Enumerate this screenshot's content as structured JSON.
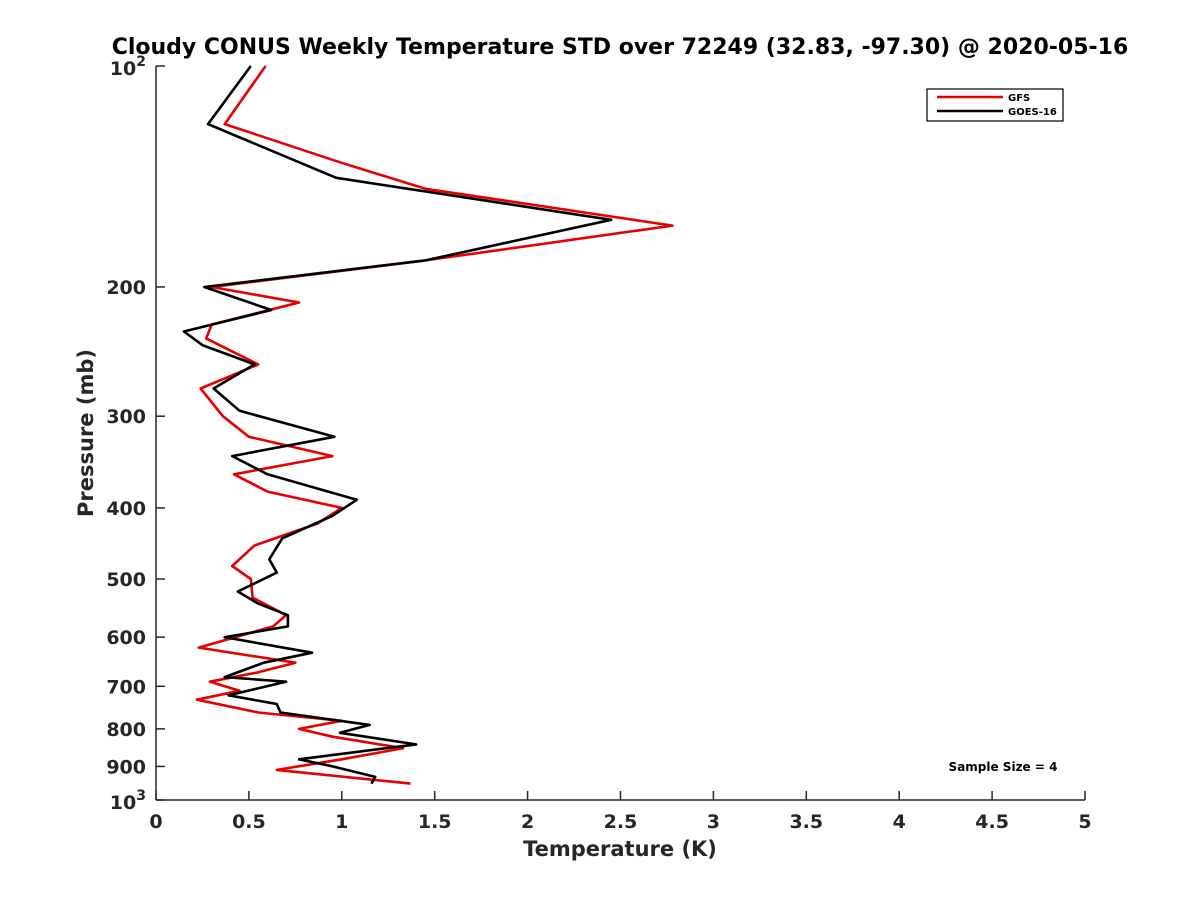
{
  "chart_data": {
    "type": "line",
    "title": "Cloudy CONUS Weekly Temperature STD over 72249 (32.83, -97.30) @ 2020-05-16",
    "xlabel": "Temperature (K)",
    "ylabel": "Pressure (mb)",
    "xlim": [
      0,
      5
    ],
    "ylim": [
      100,
      1000
    ],
    "y_scale": "log",
    "y_reversed": true,
    "x_ticks": [
      0,
      0.5,
      1,
      1.5,
      2,
      2.5,
      3,
      3.5,
      4,
      4.5,
      5
    ],
    "x_tick_labels": [
      "0",
      "0.5",
      "1",
      "1.5",
      "2",
      "2.5",
      "3",
      "3.5",
      "4",
      "4.5",
      "5"
    ],
    "y_ticks": [
      200,
      300,
      400,
      500,
      600,
      700,
      800,
      900
    ],
    "y_tick_labels": [
      "200",
      "300",
      "400",
      "500",
      "600",
      "700",
      "800",
      "900"
    ],
    "y_end_ticks": [
      {
        "value": 100,
        "base": "10",
        "exp": "2"
      },
      {
        "value": 1000,
        "base": "10",
        "exp": "3"
      }
    ],
    "grid": false,
    "legend_position": "top-right",
    "annotation": "Sample Size = 4",
    "series": [
      {
        "name": "GFS",
        "color": "#e60000",
        "points": [
          [
            0.59,
            100
          ],
          [
            0.37,
            120
          ],
          [
            0.98,
            135
          ],
          [
            1.45,
            147
          ],
          [
            2.78,
            165
          ],
          [
            1.45,
            184
          ],
          [
            0.3,
            200
          ],
          [
            0.77,
            210
          ],
          [
            0.3,
            225
          ],
          [
            0.27,
            235
          ],
          [
            0.55,
            255
          ],
          [
            0.24,
            275
          ],
          [
            0.36,
            300
          ],
          [
            0.5,
            320
          ],
          [
            0.95,
            340
          ],
          [
            0.42,
            360
          ],
          [
            0.6,
            380
          ],
          [
            1.0,
            400
          ],
          [
            0.87,
            420
          ],
          [
            0.53,
            450
          ],
          [
            0.41,
            480
          ],
          [
            0.51,
            500
          ],
          [
            0.52,
            530
          ],
          [
            0.7,
            560
          ],
          [
            0.63,
            580
          ],
          [
            0.23,
            620
          ],
          [
            0.75,
            650
          ],
          [
            0.55,
            670
          ],
          [
            0.29,
            690
          ],
          [
            0.45,
            710
          ],
          [
            0.22,
            730
          ],
          [
            0.55,
            760
          ],
          [
            1.0,
            780
          ],
          [
            0.77,
            800
          ],
          [
            0.95,
            820
          ],
          [
            1.33,
            850
          ],
          [
            1.0,
            880
          ],
          [
            0.65,
            910
          ],
          [
            1.37,
            950
          ]
        ]
      },
      {
        "name": "GOES-16",
        "color": "#000000",
        "points": [
          [
            0.51,
            100
          ],
          [
            0.28,
            120
          ],
          [
            0.97,
            142
          ],
          [
            2.45,
            162
          ],
          [
            1.45,
            184
          ],
          [
            0.26,
            200
          ],
          [
            0.62,
            215
          ],
          [
            0.15,
            230
          ],
          [
            0.25,
            240
          ],
          [
            0.53,
            255
          ],
          [
            0.31,
            275
          ],
          [
            0.45,
            295
          ],
          [
            0.96,
            320
          ],
          [
            0.41,
            340
          ],
          [
            0.6,
            360
          ],
          [
            1.08,
            390
          ],
          [
            0.95,
            410
          ],
          [
            0.68,
            440
          ],
          [
            0.61,
            470
          ],
          [
            0.65,
            490
          ],
          [
            0.44,
            520
          ],
          [
            0.55,
            540
          ],
          [
            0.71,
            560
          ],
          [
            0.71,
            580
          ],
          [
            0.37,
            600
          ],
          [
            0.84,
            630
          ],
          [
            0.58,
            650
          ],
          [
            0.37,
            680
          ],
          [
            0.7,
            690
          ],
          [
            0.39,
            720
          ],
          [
            0.65,
            740
          ],
          [
            0.67,
            760
          ],
          [
            1.15,
            790
          ],
          [
            0.99,
            810
          ],
          [
            1.4,
            840
          ],
          [
            0.77,
            880
          ],
          [
            0.95,
            900
          ],
          [
            1.18,
            930
          ],
          [
            1.16,
            950
          ]
        ]
      }
    ]
  }
}
